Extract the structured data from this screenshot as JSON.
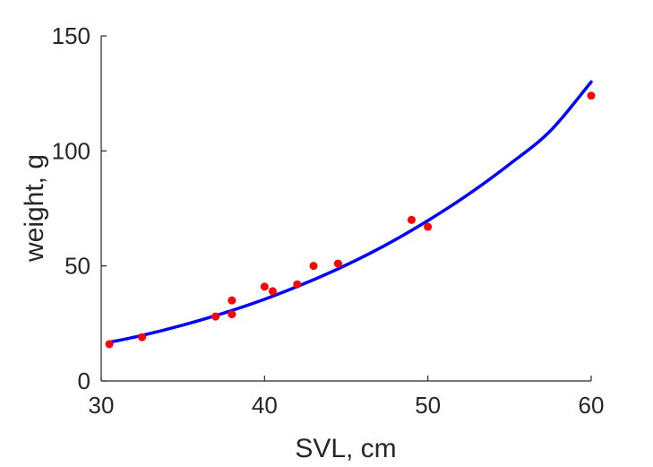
{
  "chart_data": {
    "type": "scatter",
    "title": "",
    "xlabel": "SVL, cm",
    "ylabel": "weight, g",
    "xlim": [
      30,
      60
    ],
    "ylim": [
      0,
      150
    ],
    "xticks": [
      30,
      40,
      50,
      60
    ],
    "yticks": [
      0,
      50,
      100,
      150
    ],
    "grid": false,
    "legend": "none",
    "series": [
      {
        "kind": "scatter",
        "color": "#ff0000",
        "points": [
          {
            "x": 30.5,
            "y": 16
          },
          {
            "x": 32.5,
            "y": 19
          },
          {
            "x": 37,
            "y": 28
          },
          {
            "x": 38,
            "y": 29
          },
          {
            "x": 38,
            "y": 35
          },
          {
            "x": 40,
            "y": 41
          },
          {
            "x": 40.5,
            "y": 39
          },
          {
            "x": 42,
            "y": 42
          },
          {
            "x": 43,
            "y": 50
          },
          {
            "x": 44.5,
            "y": 51
          },
          {
            "x": 49,
            "y": 70
          },
          {
            "x": 50,
            "y": 67
          },
          {
            "x": 60,
            "y": 124
          }
        ]
      },
      {
        "kind": "line",
        "color": "#0000ff",
        "points": [
          {
            "x": 30.5,
            "y": 16.8
          },
          {
            "x": 32.5,
            "y": 19.8
          },
          {
            "x": 35,
            "y": 24.3
          },
          {
            "x": 37.5,
            "y": 29.5
          },
          {
            "x": 40,
            "y": 35.5
          },
          {
            "x": 42.5,
            "y": 42.5
          },
          {
            "x": 45,
            "y": 50.4
          },
          {
            "x": 47.5,
            "y": 59.4
          },
          {
            "x": 50,
            "y": 69.7
          },
          {
            "x": 52.5,
            "y": 81.2
          },
          {
            "x": 55,
            "y": 94.2
          },
          {
            "x": 57.5,
            "y": 108.7
          },
          {
            "x": 60,
            "y": 130
          }
        ]
      }
    ]
  }
}
